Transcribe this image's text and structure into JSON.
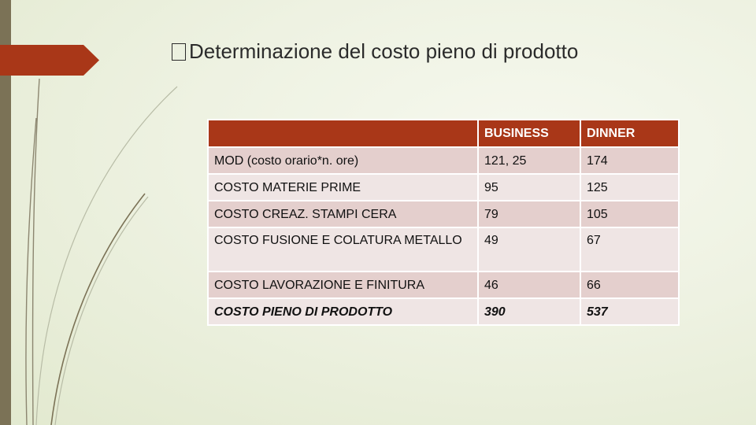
{
  "slide": {
    "title": "Determinazione del costo pieno di prodotto",
    "title_glyph": "missing-glyph-icon",
    "accent_color": "#a93718"
  },
  "table": {
    "headers": [
      "",
      "BUSINESS",
      "DINNER"
    ],
    "rows": [
      {
        "label": "MOD (costo orario*n. ore)",
        "business": "121, 25",
        "dinner": "174"
      },
      {
        "label": "COSTO MATERIE PRIME",
        "business": "95",
        "dinner": "125"
      },
      {
        "label": "COSTO CREAZ. STAMPI CERA",
        "business": "79",
        "dinner": "105"
      },
      {
        "label": "COSTO FUSIONE E COLATURA METALLO",
        "business": "49",
        "dinner": "67"
      },
      {
        "label": "COSTO LAVORAZIONE E FINITURA",
        "business": "46",
        "dinner": "66"
      },
      {
        "label": "COSTO PIENO DI PRODOTTO",
        "business": "390",
        "dinner": "537"
      }
    ]
  }
}
